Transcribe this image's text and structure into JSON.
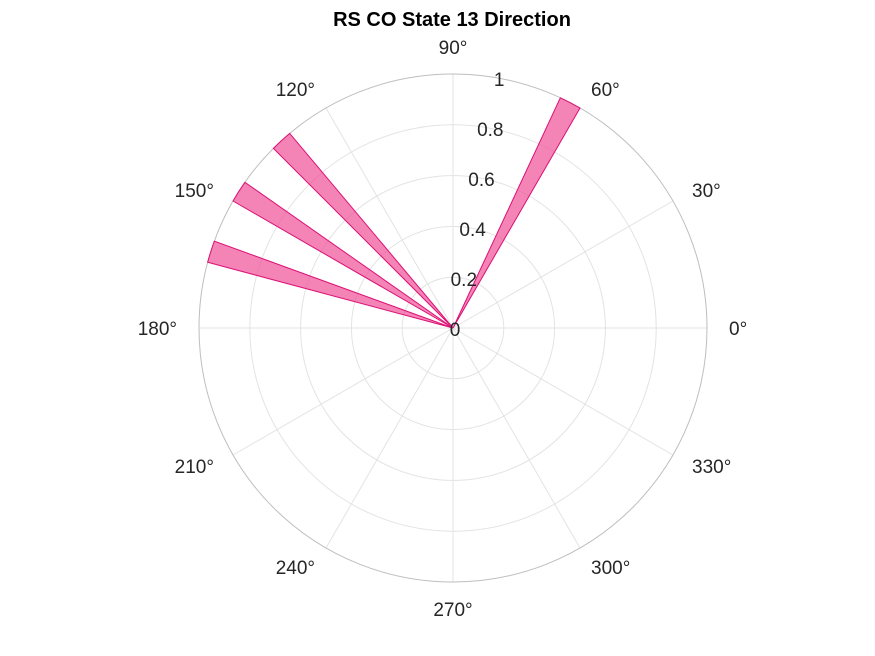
{
  "chart_data": {
    "type": "polar-histogram",
    "title": "RS  CO State 13 Direction",
    "rlim": [
      0,
      1
    ],
    "r_ticks": [
      0,
      0.2,
      0.4,
      0.6,
      0.8,
      1
    ],
    "r_tick_labels": [
      "0",
      "0.2",
      "0.4",
      "0.6",
      "0.8",
      "1"
    ],
    "theta_ticks": [
      0,
      30,
      60,
      90,
      120,
      150,
      180,
      210,
      240,
      270,
      300,
      330
    ],
    "theta_tick_labels": [
      "0°",
      "30°",
      "60°",
      "90°",
      "120°",
      "150°",
      "180°",
      "210°",
      "240°",
      "270°",
      "300°",
      "330°"
    ],
    "grid": true,
    "bin_width_deg": 5,
    "bars": [
      {
        "theta_start": 60,
        "theta_end": 65,
        "value": 1.0
      },
      {
        "theta_start": 130,
        "theta_end": 135,
        "value": 1.0
      },
      {
        "theta_start": 145,
        "theta_end": 150,
        "value": 1.0
      },
      {
        "theta_start": 160,
        "theta_end": 165,
        "value": 1.0
      }
    ],
    "colors": {
      "bar_fill": "#EE5599",
      "bar_edge": "#DD1177",
      "grid": "#E3E3E3",
      "outer_circle": "#BEBEBE",
      "text": "#262626"
    }
  }
}
